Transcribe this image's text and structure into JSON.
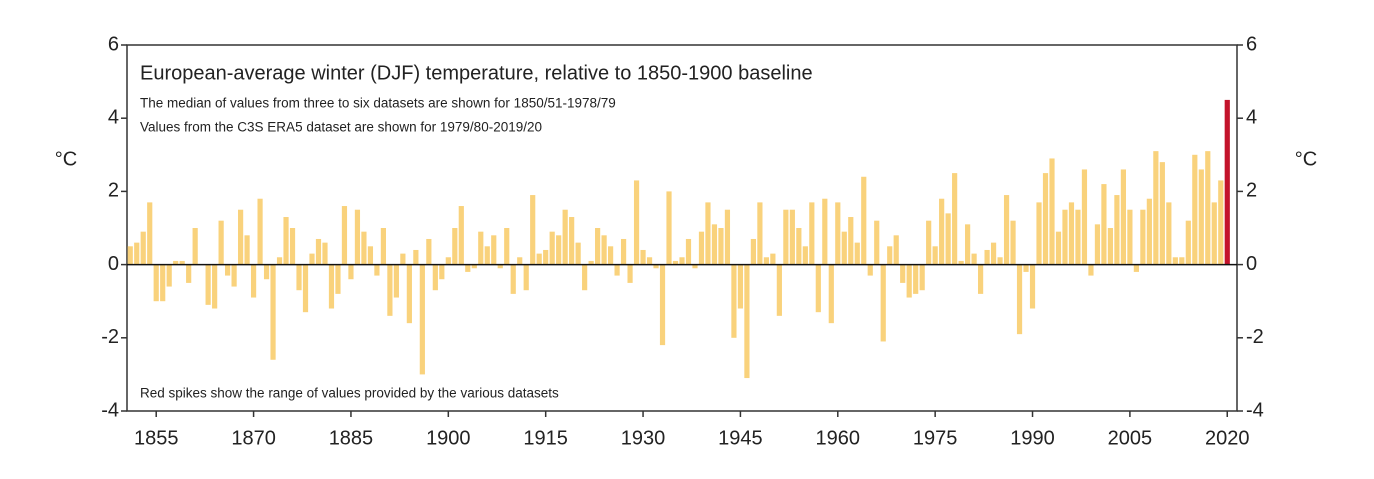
{
  "chart_data": {
    "type": "bar",
    "title": "European-average winter (DJF) temperature, relative to 1850-1900 baseline",
    "subtitle": [
      "The median of values from three to six datasets are shown for 1850/51-1978/79",
      "Values from the C3S ERA5 dataset are shown for 1979/80-2019/20"
    ],
    "annotation": "Red spikes show the range of values provided by the various datasets",
    "y_label": "°C",
    "y2_label": "°C",
    "color": "#f9d27c",
    "highlight_color": "#c3132b",
    "x": [
      1851,
      1852,
      1853,
      1854,
      1855,
      1856,
      1857,
      1858,
      1859,
      1860,
      1861,
      1862,
      1863,
      1864,
      1865,
      1866,
      1867,
      1868,
      1869,
      1870,
      1871,
      1872,
      1873,
      1874,
      1875,
      1876,
      1877,
      1878,
      1879,
      1880,
      1881,
      1882,
      1883,
      1884,
      1885,
      1886,
      1887,
      1888,
      1889,
      1890,
      1891,
      1892,
      1893,
      1894,
      1895,
      1896,
      1897,
      1898,
      1899,
      1900,
      1901,
      1902,
      1903,
      1904,
      1905,
      1906,
      1907,
      1908,
      1909,
      1910,
      1911,
      1912,
      1913,
      1914,
      1915,
      1916,
      1917,
      1918,
      1919,
      1920,
      1921,
      1922,
      1923,
      1924,
      1925,
      1926,
      1927,
      1928,
      1929,
      1930,
      1931,
      1932,
      1933,
      1934,
      1935,
      1936,
      1937,
      1938,
      1939,
      1940,
      1941,
      1942,
      1943,
      1944,
      1945,
      1946,
      1947,
      1948,
      1949,
      1950,
      1951,
      1952,
      1953,
      1954,
      1955,
      1956,
      1957,
      1958,
      1959,
      1960,
      1961,
      1962,
      1963,
      1964,
      1965,
      1966,
      1967,
      1968,
      1969,
      1970,
      1971,
      1972,
      1973,
      1974,
      1975,
      1976,
      1977,
      1978,
      1979,
      1980,
      1981,
      1982,
      1983,
      1984,
      1985,
      1986,
      1987,
      1988,
      1989,
      1990,
      1991,
      1992,
      1993,
      1994,
      1995,
      1996,
      1997,
      1998,
      1999,
      2000,
      2001,
      2002,
      2003,
      2004,
      2005,
      2006,
      2007,
      2008,
      2009,
      2010,
      2011,
      2012,
      2013,
      2014,
      2015,
      2016,
      2017,
      2018,
      2019,
      2020
    ],
    "values": [
      0.5,
      0.6,
      0.9,
      1.7,
      -1.0,
      -1.0,
      -0.6,
      0.1,
      0.1,
      -0.5,
      1.0,
      0.0,
      -1.1,
      -1.2,
      1.2,
      -0.3,
      -0.6,
      1.5,
      0.8,
      -0.9,
      1.8,
      -0.4,
      -2.6,
      0.2,
      1.3,
      1.0,
      -0.7,
      -1.3,
      0.3,
      0.7,
      0.6,
      -1.2,
      -0.8,
      1.6,
      -0.4,
      1.5,
      0.9,
      0.5,
      -0.3,
      1.0,
      -1.4,
      -0.9,
      0.3,
      -1.6,
      0.4,
      -3.0,
      0.7,
      -0.7,
      -0.4,
      0.2,
      1.0,
      1.6,
      -0.2,
      -0.1,
      0.9,
      0.5,
      0.8,
      -0.1,
      1.0,
      -0.8,
      0.2,
      -0.7,
      1.9,
      0.3,
      0.4,
      0.9,
      0.8,
      1.5,
      1.3,
      0.6,
      -0.7,
      0.1,
      1.0,
      0.8,
      0.5,
      -0.3,
      0.7,
      -0.5,
      2.3,
      0.4,
      0.2,
      -0.1,
      -2.2,
      2.0,
      0.1,
      0.2,
      0.7,
      -0.1,
      0.9,
      1.7,
      1.1,
      1.0,
      1.5,
      -2.0,
      -1.2,
      -3.1,
      0.7,
      1.7,
      0.2,
      0.3,
      -1.4,
      1.5,
      1.5,
      1.0,
      0.5,
      1.7,
      -1.3,
      1.8,
      -1.6,
      1.7,
      0.9,
      1.3,
      0.6,
      2.4,
      -0.3,
      1.2,
      -2.1,
      0.5,
      0.8,
      -0.5,
      -0.9,
      -0.8,
      -0.7,
      1.2,
      0.5,
      1.8,
      1.4,
      2.5,
      0.1,
      1.1,
      0.3,
      -0.8,
      0.4,
      0.6,
      0.2,
      1.9,
      1.2,
      -1.9,
      -0.2,
      -1.2,
      1.7,
      2.5,
      2.9,
      0.9,
      1.5,
      1.7,
      1.5,
      2.6,
      -0.3,
      1.1,
      2.2,
      1.0,
      1.9,
      2.6,
      1.5,
      -0.2,
      1.5,
      1.8,
      3.1,
      2.8,
      1.7,
      0.2,
      0.2,
      1.2,
      3.0,
      2.6,
      3.1,
      1.7,
      2.3,
      4.5
    ],
    "xlim": [
      1850.5,
      2021.5
    ],
    "xticks": [
      1855,
      1870,
      1885,
      1900,
      1915,
      1930,
      1945,
      1960,
      1975,
      1990,
      2005,
      2020
    ],
    "ylim": [
      -4,
      6
    ],
    "yticks": [
      -4,
      -2,
      0,
      2,
      4,
      6
    ],
    "y2lim": [
      -4,
      6
    ],
    "y2ticks": [
      -4,
      -2,
      0,
      2,
      4,
      6
    ]
  }
}
